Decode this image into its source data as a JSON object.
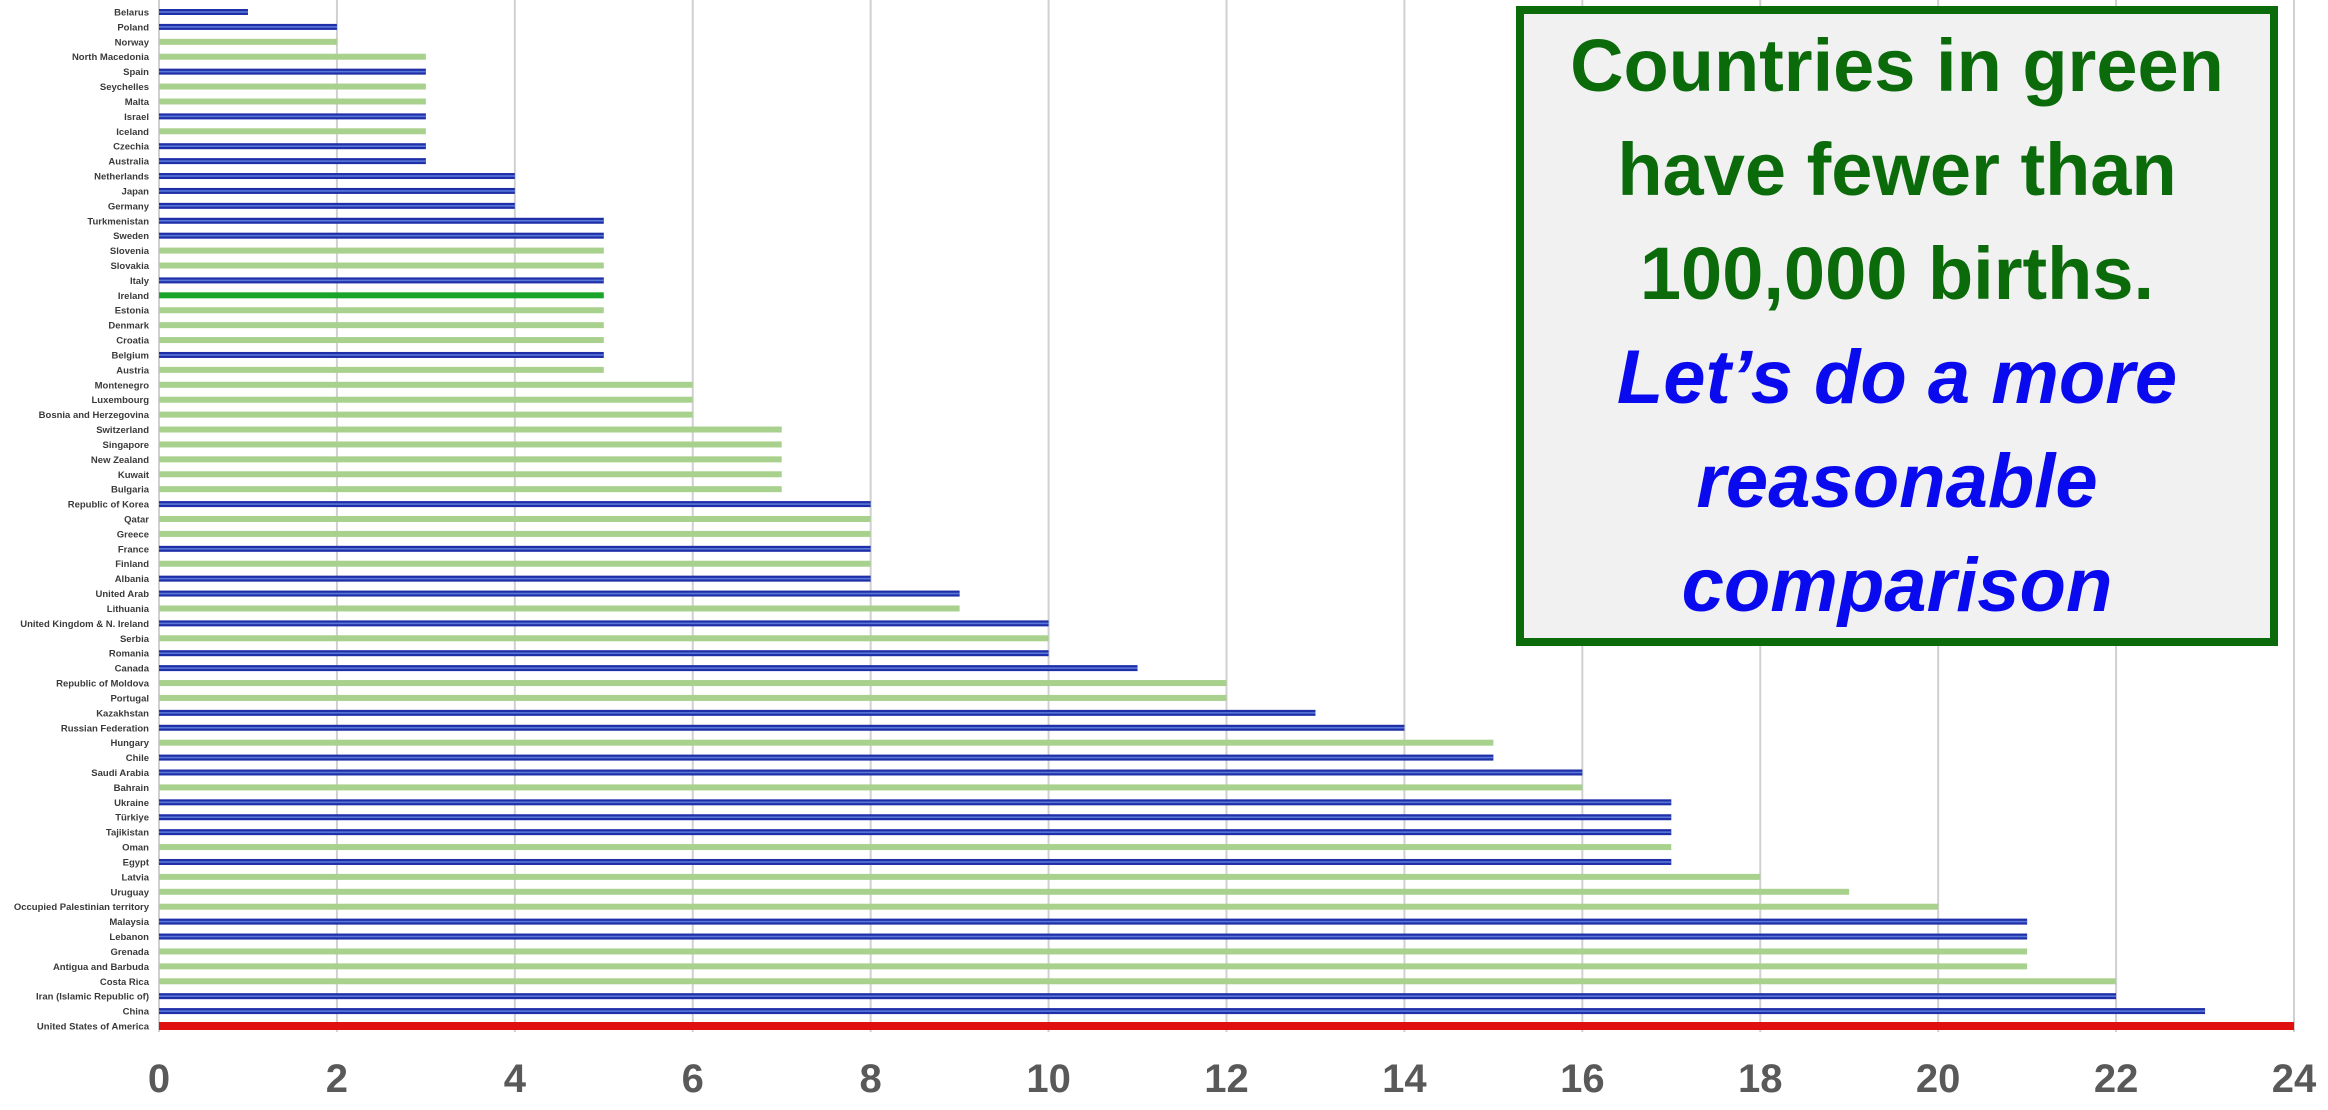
{
  "chart_data": {
    "type": "bar",
    "orientation": "horizontal",
    "xlim": [
      0,
      24
    ],
    "x_ticks": [
      "0",
      "2",
      "4",
      "6",
      "8",
      "10",
      "12",
      "14",
      "16",
      "18",
      "20",
      "22",
      "24"
    ],
    "grid": true,
    "colors": {
      "green": "#a9d18e",
      "blue": "#1f2fa8",
      "highlight_green": "#1aa52a",
      "red": "#e01010"
    },
    "bars": [
      {
        "label": "Belarus",
        "value": 1,
        "color": "blue"
      },
      {
        "label": "Poland",
        "value": 2,
        "color": "blue"
      },
      {
        "label": "Norway",
        "value": 2,
        "color": "green"
      },
      {
        "label": "North Macedonia",
        "value": 3,
        "color": "green"
      },
      {
        "label": "Spain",
        "value": 3,
        "color": "blue"
      },
      {
        "label": "Seychelles",
        "value": 3,
        "color": "green"
      },
      {
        "label": "Malta",
        "value": 3,
        "color": "green"
      },
      {
        "label": "Israel",
        "value": 3,
        "color": "blue"
      },
      {
        "label": "Iceland",
        "value": 3,
        "color": "green"
      },
      {
        "label": "Czechia",
        "value": 3,
        "color": "blue"
      },
      {
        "label": "Australia",
        "value": 3,
        "color": "blue"
      },
      {
        "label": "Netherlands",
        "value": 4,
        "color": "blue"
      },
      {
        "label": "Japan",
        "value": 4,
        "color": "blue"
      },
      {
        "label": "Germany",
        "value": 4,
        "color": "blue"
      },
      {
        "label": "Turkmenistan",
        "value": 5,
        "color": "blue"
      },
      {
        "label": "Sweden",
        "value": 5,
        "color": "blue"
      },
      {
        "label": "Slovenia",
        "value": 5,
        "color": "green"
      },
      {
        "label": "Slovakia",
        "value": 5,
        "color": "green"
      },
      {
        "label": "Italy",
        "value": 5,
        "color": "blue"
      },
      {
        "label": "Ireland",
        "value": 5,
        "color": "highlight_green"
      },
      {
        "label": "Estonia",
        "value": 5,
        "color": "green"
      },
      {
        "label": "Denmark",
        "value": 5,
        "color": "green"
      },
      {
        "label": "Croatia",
        "value": 5,
        "color": "green"
      },
      {
        "label": "Belgium",
        "value": 5,
        "color": "blue"
      },
      {
        "label": "Austria",
        "value": 5,
        "color": "green"
      },
      {
        "label": "Montenegro",
        "value": 6,
        "color": "green"
      },
      {
        "label": "Luxembourg",
        "value": 6,
        "color": "green"
      },
      {
        "label": "Bosnia and Herzegovina",
        "value": 6,
        "color": "green"
      },
      {
        "label": "Switzerland",
        "value": 7,
        "color": "green"
      },
      {
        "label": "Singapore",
        "value": 7,
        "color": "green"
      },
      {
        "label": "New Zealand",
        "value": 7,
        "color": "green"
      },
      {
        "label": "Kuwait",
        "value": 7,
        "color": "green"
      },
      {
        "label": "Bulgaria",
        "value": 7,
        "color": "green"
      },
      {
        "label": "Republic of Korea",
        "value": 8,
        "color": "blue"
      },
      {
        "label": "Qatar",
        "value": 8,
        "color": "green"
      },
      {
        "label": "Greece",
        "value": 8,
        "color": "green"
      },
      {
        "label": "France",
        "value": 8,
        "color": "blue"
      },
      {
        "label": "Finland",
        "value": 8,
        "color": "green"
      },
      {
        "label": "Albania",
        "value": 8,
        "color": "blue"
      },
      {
        "label": "United Arab",
        "value": 9,
        "color": "blue"
      },
      {
        "label": "Lithuania",
        "value": 9,
        "color": "green"
      },
      {
        "label": "United Kingdom  & N. Ireland",
        "value": 10,
        "color": "blue"
      },
      {
        "label": "Serbia",
        "value": 10,
        "color": "green"
      },
      {
        "label": "Romania",
        "value": 10,
        "color": "blue"
      },
      {
        "label": "Canada",
        "value": 11,
        "color": "blue"
      },
      {
        "label": "Republic of Moldova",
        "value": 12,
        "color": "green"
      },
      {
        "label": "Portugal",
        "value": 12,
        "color": "green"
      },
      {
        "label": "Kazakhstan",
        "value": 13,
        "color": "blue"
      },
      {
        "label": "Russian Federation",
        "value": 14,
        "color": "blue"
      },
      {
        "label": "Hungary",
        "value": 15,
        "color": "green"
      },
      {
        "label": "Chile",
        "value": 15,
        "color": "blue"
      },
      {
        "label": "Saudi Arabia",
        "value": 16,
        "color": "blue"
      },
      {
        "label": "Bahrain",
        "value": 16,
        "color": "green"
      },
      {
        "label": "Ukraine",
        "value": 17,
        "color": "blue"
      },
      {
        "label": "Türkiye",
        "value": 17,
        "color": "blue"
      },
      {
        "label": "Tajikistan",
        "value": 17,
        "color": "blue"
      },
      {
        "label": "Oman",
        "value": 17,
        "color": "green"
      },
      {
        "label": "Egypt",
        "value": 17,
        "color": "blue"
      },
      {
        "label": "Latvia",
        "value": 18,
        "color": "green"
      },
      {
        "label": "Uruguay",
        "value": 19,
        "color": "green"
      },
      {
        "label": "Occupied Palestinian territory",
        "value": 20,
        "color": "green"
      },
      {
        "label": "Malaysia",
        "value": 21,
        "color": "blue"
      },
      {
        "label": "Lebanon",
        "value": 21,
        "color": "blue"
      },
      {
        "label": "Grenada",
        "value": 21,
        "color": "green"
      },
      {
        "label": "Antigua and Barbuda",
        "value": 21,
        "color": "green"
      },
      {
        "label": "Costa Rica",
        "value": 22,
        "color": "green"
      },
      {
        "label": "Iran (Islamic Republic of)",
        "value": 22,
        "color": "blue"
      },
      {
        "label": "China",
        "value": 23,
        "color": "blue"
      },
      {
        "label": "United States of America",
        "value": 24,
        "color": "red"
      }
    ]
  },
  "callout": {
    "line1": "Countries in green",
    "line2": "have fewer than",
    "line3": "100,000 births.",
    "line4": "Let’s do a more",
    "line5": "reasonable",
    "line6": "comparison"
  }
}
